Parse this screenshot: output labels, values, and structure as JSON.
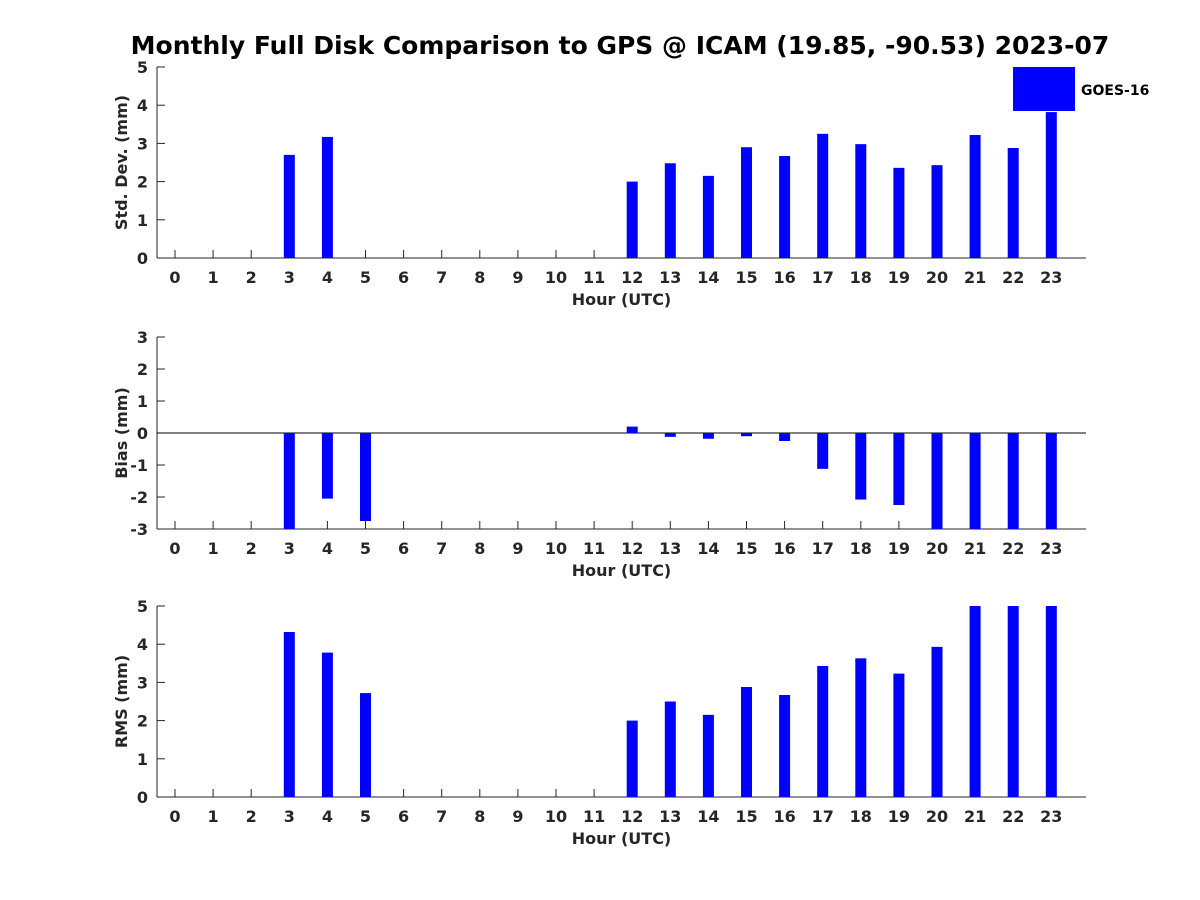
{
  "chart_data": {
    "title": "Monthly Full Disk Comparison to GPS @ ICAM (19.85, -90.53) 2023-07",
    "legend": {
      "entries": [
        "GOES-16"
      ],
      "placement": "top-right"
    },
    "bar_color": "#0000ff",
    "panels": [
      {
        "type": "bar",
        "xlabel": "Hour (UTC)",
        "ylabel": "Std. Dev. (mm)",
        "ylim": [
          0,
          5
        ],
        "yticks": [
          "0",
          "1",
          "2",
          "3",
          "4",
          "5"
        ],
        "categories": [
          "0",
          "1",
          "2",
          "3",
          "4",
          "5",
          "6",
          "7",
          "8",
          "9",
          "10",
          "11",
          "12",
          "13",
          "14",
          "15",
          "16",
          "17",
          "18",
          "19",
          "20",
          "21",
          "22",
          "23"
        ],
        "series": [
          {
            "name": "GOES-16",
            "values": [
              null,
              null,
              null,
              2.7,
              3.17,
              null,
              null,
              null,
              null,
              null,
              null,
              null,
              2.0,
              2.48,
              2.15,
              2.9,
              2.67,
              3.25,
              2.98,
              2.36,
              2.43,
              3.22,
              2.88,
              3.82
            ]
          }
        ]
      },
      {
        "type": "bar",
        "xlabel": "Hour (UTC)",
        "ylabel": "Bias (mm)",
        "ylim": [
          -3,
          3
        ],
        "yticks": [
          "-3",
          "-2",
          "-1",
          "0",
          "1",
          "2",
          "3"
        ],
        "zero_line": true,
        "categories": [
          "0",
          "1",
          "2",
          "3",
          "4",
          "5",
          "6",
          "7",
          "8",
          "9",
          "10",
          "11",
          "12",
          "13",
          "14",
          "15",
          "16",
          "17",
          "18",
          "19",
          "20",
          "21",
          "22",
          "23"
        ],
        "series": [
          {
            "name": "GOES-16",
            "values": [
              null,
              null,
              null,
              -3.0,
              -2.05,
              -2.75,
              null,
              null,
              null,
              null,
              null,
              null,
              0.2,
              -0.12,
              -0.18,
              -0.1,
              -0.25,
              -1.12,
              -2.08,
              -2.25,
              -3.0,
              -3.0,
              -3.0,
              -3.0
            ]
          }
        ]
      },
      {
        "type": "bar",
        "xlabel": "Hour (UTC)",
        "ylabel": "RMS (mm)",
        "ylim": [
          0,
          5
        ],
        "yticks": [
          "0",
          "1",
          "2",
          "3",
          "4",
          "5"
        ],
        "categories": [
          "0",
          "1",
          "2",
          "3",
          "4",
          "5",
          "6",
          "7",
          "8",
          "9",
          "10",
          "11",
          "12",
          "13",
          "14",
          "15",
          "16",
          "17",
          "18",
          "19",
          "20",
          "21",
          "22",
          "23"
        ],
        "series": [
          {
            "name": "GOES-16",
            "values": [
              null,
              null,
              null,
              4.32,
              3.78,
              2.72,
              null,
              null,
              null,
              null,
              null,
              null,
              2.0,
              2.5,
              2.15,
              2.88,
              2.67,
              3.43,
              3.63,
              3.23,
              3.93,
              5.0,
              5.0,
              5.0
            ]
          }
        ]
      }
    ]
  }
}
